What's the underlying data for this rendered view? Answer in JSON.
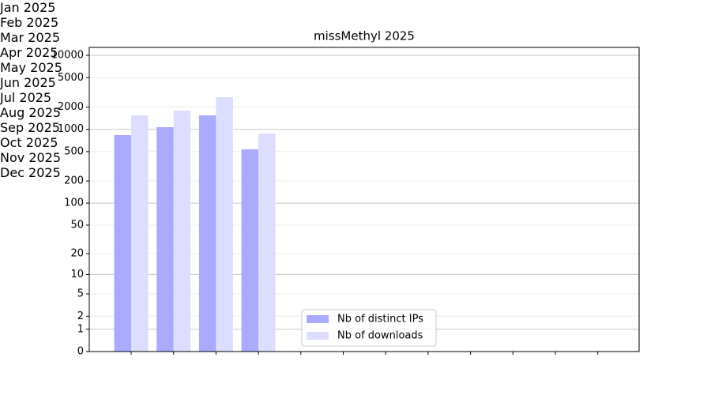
{
  "chart_data": {
    "type": "bar",
    "title": "missMethyl 2025",
    "categories": [
      "Jan\n2025",
      "Feb\n2025",
      "Mar\n2025",
      "Apr\n2025",
      "May\n2025",
      "Jun\n2025",
      "Jul\n2025",
      "Aug\n2025",
      "Sep\n2025",
      "Oct\n2025",
      "Nov\n2025",
      "Dec\n2025"
    ],
    "series": [
      {
        "name": "Nb of distinct IPs",
        "color": "#aaaaff",
        "values": [
          836,
          1070,
          1546,
          537,
          null,
          null,
          null,
          null,
          null,
          null,
          null,
          null
        ]
      },
      {
        "name": "Nb of downloads",
        "color": "#ddddff",
        "values": [
          1546,
          1792,
          2720,
          878,
          null,
          null,
          null,
          null,
          null,
          null,
          null,
          null
        ]
      }
    ],
    "yscale": "log1p",
    "ylim": [
      0,
      12800
    ],
    "yticks": [
      0,
      1,
      2,
      5,
      10,
      20,
      50,
      100,
      200,
      500,
      1000,
      2000,
      5000,
      10000
    ],
    "grid": true,
    "legend": "lower center"
  }
}
